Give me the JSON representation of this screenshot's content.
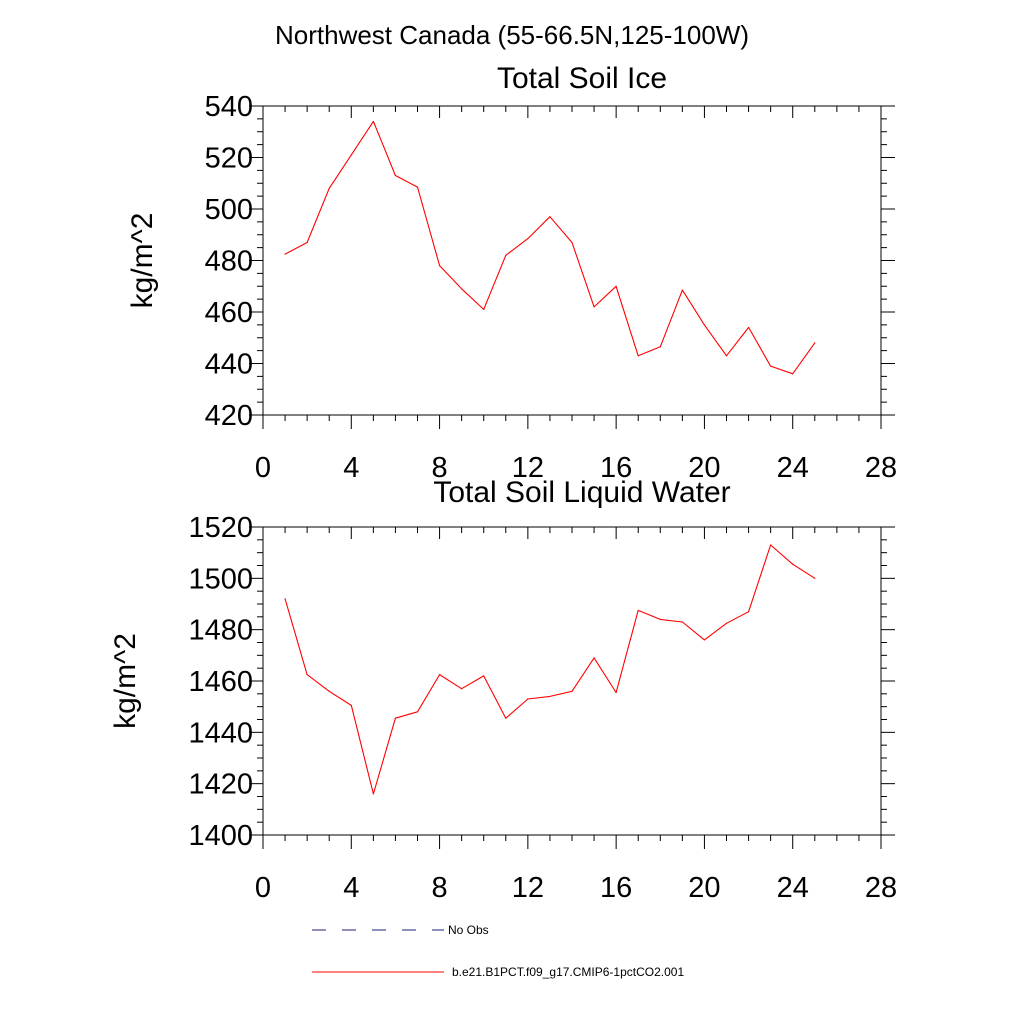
{
  "figure_title": "Northwest Canada (55-66.5N,125-100W)",
  "legend": {
    "placement": "bottom-left",
    "entries": [
      {
        "label": "No Obs",
        "color": "#1f1f7a",
        "style": "dashed"
      },
      {
        "label": "b.e21.B1PCT.f09_g17.CMIP6-1pctCO2.001",
        "color": "#ff0000",
        "style": "solid"
      }
    ]
  },
  "chart_data": [
    {
      "type": "line",
      "title": "Total Soil Ice",
      "xlabel": "",
      "ylabel": "kg/m^2",
      "xlim": [
        0,
        28
      ],
      "ylim": [
        420,
        540
      ],
      "xticks": [
        "0",
        "4",
        "8",
        "12",
        "16",
        "20",
        "24",
        "28"
      ],
      "yticks": [
        "420",
        "440",
        "460",
        "480",
        "500",
        "520",
        "540"
      ],
      "grid": false,
      "series": [
        {
          "name": "b.e21.B1PCT.f09_g17.CMIP6-1pctCO2.001",
          "color": "#ff0000",
          "x": [
            1,
            2,
            3,
            4,
            5,
            6,
            7,
            8,
            9,
            10,
            11,
            12,
            13,
            14,
            15,
            16,
            17,
            18,
            19,
            20,
            21,
            22,
            23,
            24,
            25
          ],
          "values": [
            482.5,
            487,
            508,
            521,
            534,
            513,
            508.5,
            478,
            469,
            461,
            482,
            488.5,
            497,
            487,
            462,
            470,
            443,
            446.5,
            468.5,
            455,
            443,
            454,
            439,
            436,
            448
          ]
        }
      ]
    },
    {
      "type": "line",
      "title": "Total Soil Liquid Water",
      "xlabel": "",
      "ylabel": "kg/m^2",
      "xlim": [
        0,
        28
      ],
      "ylim": [
        1400,
        1520
      ],
      "xticks": [
        "0",
        "4",
        "8",
        "12",
        "16",
        "20",
        "24",
        "28"
      ],
      "yticks": [
        "1400",
        "1420",
        "1440",
        "1460",
        "1480",
        "1500",
        "1520"
      ],
      "grid": false,
      "series": [
        {
          "name": "b.e21.B1PCT.f09_g17.CMIP6-1pctCO2.001",
          "color": "#ff0000",
          "x": [
            1,
            2,
            3,
            4,
            5,
            6,
            7,
            8,
            9,
            10,
            11,
            12,
            13,
            14,
            15,
            16,
            17,
            18,
            19,
            20,
            21,
            22,
            23,
            24,
            25
          ],
          "values": [
            1492,
            1462.5,
            1456,
            1450.5,
            1416,
            1445.5,
            1448,
            1462.5,
            1457,
            1462,
            1445.5,
            1453,
            1454,
            1456,
            1469,
            1455.5,
            1487.5,
            1484,
            1483,
            1476,
            1482.5,
            1487,
            1513,
            1505.5,
            1500
          ]
        }
      ]
    }
  ]
}
